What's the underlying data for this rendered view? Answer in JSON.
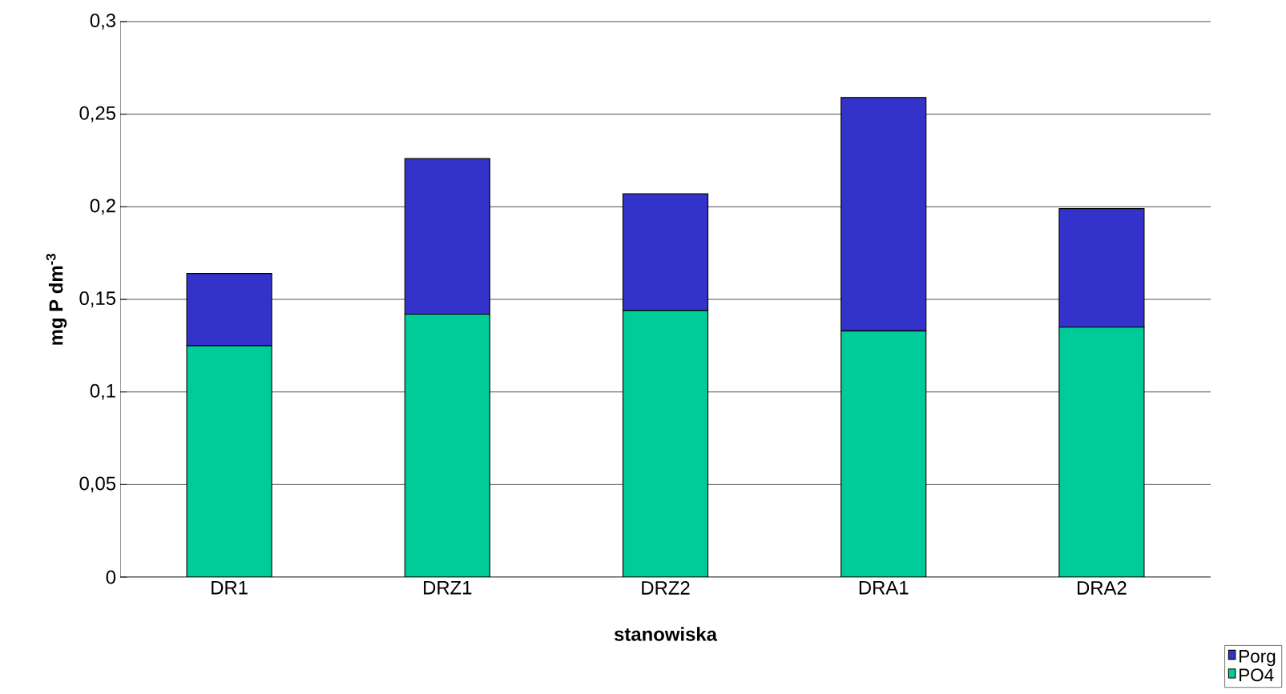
{
  "chart_data": {
    "type": "bar",
    "stacked": true,
    "xlabel": "stanowiska",
    "ylabel": "mg P dm$^{-3}$",
    "categories": [
      "DR1",
      "DRZ1",
      "DRZ2",
      "DRA1",
      "DRA2"
    ],
    "series": [
      {
        "name": "PO4",
        "color": "#00cc99",
        "values": [
          0.125,
          0.142,
          0.144,
          0.133,
          0.135
        ]
      },
      {
        "name": "Porg",
        "color": "#3333cc",
        "values": [
          0.039,
          0.084,
          0.063,
          0.126,
          0.064
        ]
      }
    ],
    "ylim": [
      0,
      0.3
    ],
    "yticks": [
      {
        "value": 0,
        "label": "0"
      },
      {
        "value": 0.05,
        "label": "0,05"
      },
      {
        "value": 0.1,
        "label": "0,1"
      },
      {
        "value": 0.15,
        "label": "0,15"
      },
      {
        "value": 0.2,
        "label": "0,2"
      },
      {
        "value": 0.25,
        "label": "0,25"
      },
      {
        "value": 0.3,
        "label": "0,3"
      }
    ],
    "grid": "y",
    "legend": "bottom right"
  }
}
